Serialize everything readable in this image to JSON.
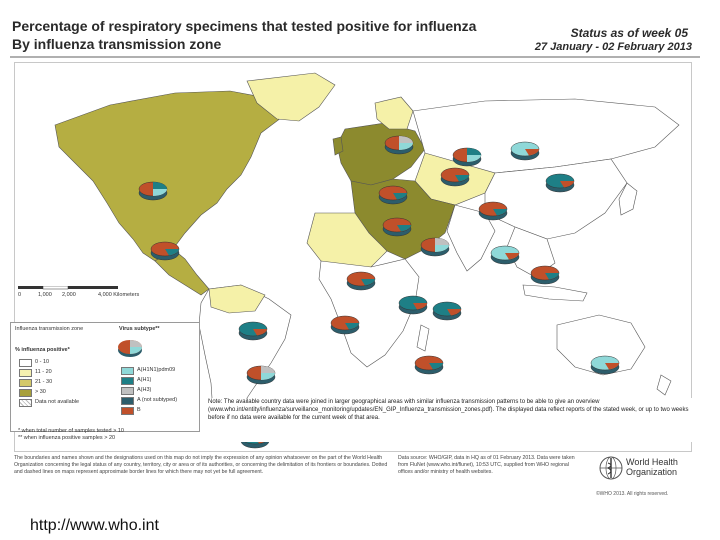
{
  "header": {
    "title_line1": "Percentage of respiratory specimens that tested positive for influenza",
    "title_line2": "By influenza transmission zone",
    "status_line1": "Status as of week 05",
    "status_line2": "27 January - 02 February 2013"
  },
  "legend": {
    "zone_label": "Influenza transmission zone",
    "virus_label": "Virus subtype**",
    "positive_label": "% influenza positive*",
    "bins": [
      "0 - 10",
      "11 - 20",
      "21 - 30",
      "> 30",
      "Data not available"
    ],
    "bin_colors": [
      "#ffffff",
      "#f5f0b0",
      "#d4c96a",
      "#a8a03a",
      "#ffffff"
    ],
    "subtypes": [
      "A(H1N1)pdm09",
      "A(H1)",
      "A(H3)",
      "A (not subtyped)",
      "B"
    ],
    "subtype_colors": [
      "#8fd8d8",
      "#1e7f86",
      "#c0c0c0",
      "#2c5d6b",
      "#c0502a"
    ]
  },
  "scale": {
    "ticks": [
      "0",
      "1,000",
      "2,000",
      "4,000 Kilometers"
    ]
  },
  "footnotes": [
    "* when total number of samples tested > 10",
    "** when influenza positive samples > 20"
  ],
  "notes": {
    "text": "Note: The available country data were joined in larger geographical areas with similar influenza transmission patterns to be able to give an overview (www.who.int/entity/influenza/surveillance_monitoring/updates/EN_GIP_Influenza_transmission_zones.pdf). The displayed data reflect reports of the stated week, or up to two weeks before if no data were available for the current week of that area."
  },
  "footer": {
    "disclaimer": "The boundaries and names shown and the designations used on this map do not imply the expression of any opinion whatsoever on the part of the World Health Organization concerning the legal status of any country, territory, city or area or of its authorities, or concerning the delimitation of its frontiers or boundaries. Dotted and dashed lines on maps represent approximate border lines for which there may not yet be full agreement.",
    "source": "Data source: WHO/GIP, data in HQ as of 01 February 2013. Data were taken from FluNet (www.who.int/flunet), 10:53 UTC, supplied from WHO regional offices and/or ministry of health websites.",
    "org_line1": "World Health",
    "org_line2": "Organization",
    "copyright": "©WHO 2013. All rights reserved."
  },
  "url": "http://www.who.int",
  "colors": {
    "land_high": "#b5ae42",
    "land_mid": "#f5f1a8",
    "land_low": "#ffffff",
    "land_dark": "#8c8a2e",
    "ocean": "#ffffff",
    "border": "#555555",
    "pie_b": "#c0502a",
    "pie_h3": "#8fd8d8",
    "pie_h1": "#1e7f86",
    "pie_ns": "#c0c0c0"
  }
}
